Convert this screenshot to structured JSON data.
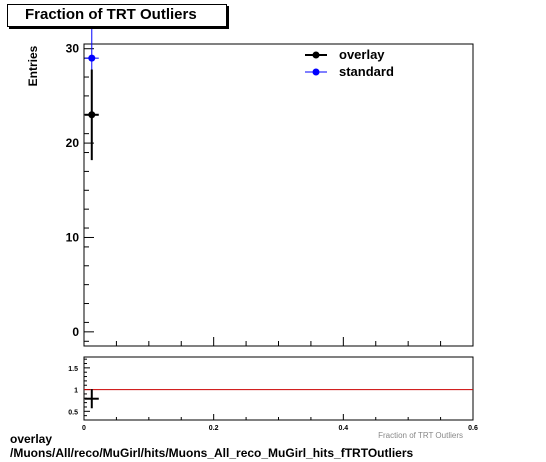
{
  "title": "Fraction of TRT Outliers",
  "caption": {
    "line1": "overlay",
    "line2": "/Muons/All/reco/MuGirl/hits/Muons_All_reco_MuGirl_hits_fTRTOutliers"
  },
  "colors": {
    "overlay": "#000000",
    "standard": "#0000ff",
    "ratio_line": "#cc0000",
    "frame": "#000000"
  },
  "chart_data": [
    {
      "type": "scatter",
      "title": "Fraction of TRT Outliers",
      "xlabel": "Fraction of TRT Outliers",
      "ylabel": "Entries",
      "xlim": [
        0,
        0.6
      ],
      "ylim": [
        -1.5,
        30.5
      ],
      "y_ticks": [
        "0",
        "10",
        "20",
        "30"
      ],
      "grid": false,
      "legend_position": "top-right",
      "series": [
        {
          "name": "overlay",
          "x": [
            0.012
          ],
          "y": [
            23
          ],
          "yerr": [
            4.8
          ]
        },
        {
          "name": "standard",
          "x": [
            0.012
          ],
          "y": [
            29
          ],
          "yerr": [
            5.4
          ]
        }
      ]
    },
    {
      "type": "scatter",
      "xlim": [
        0,
        0.6
      ],
      "ylim": [
        0.3,
        1.75
      ],
      "x_ticks": [
        "0",
        "0.2",
        "0.4",
        "0.6"
      ],
      "y_ticks": [
        "0.5",
        "1",
        "1.5"
      ],
      "reference_line": 1,
      "series": [
        {
          "x": [
            0.012
          ],
          "y": [
            0.79
          ],
          "yerr": [
            0.22
          ]
        }
      ]
    }
  ]
}
